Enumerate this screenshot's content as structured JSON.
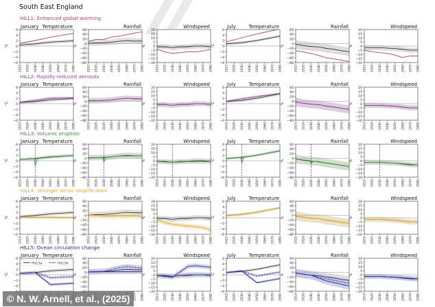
{
  "region_title": "South East England",
  "credit": "© N. W. Arnell, et al., (2025)",
  "colors": {
    "baseline": "#222222",
    "band_baseline": "#d9d9d9",
    "zero_line": "#aaaaaa"
  },
  "chart_data": {
    "type": "line",
    "x_ticks": [
      "2010",
      "2020",
      "2030",
      "2040",
      "2050",
      "2060",
      "2070",
      "2080"
    ],
    "xlim": [
      2010,
      2080
    ],
    "panel_titles": {
      "jan_temp": [
        "January",
        "Temperature"
      ],
      "jan_rain": [
        "",
        "Rainfall"
      ],
      "jan_wind": [
        "",
        "Windspeed"
      ],
      "jul_temp": [
        "July",
        "Temperature"
      ],
      "jul_rain": [
        "",
        "Rainfall"
      ],
      "jul_wind": [
        "",
        "Windspeed"
      ]
    },
    "axes": {
      "temperature": {
        "ylabel": "°C",
        "ylim": [
          -6,
          6
        ],
        "yticks": [
          "-6",
          "-4",
          "-2",
          "0",
          "2",
          "4",
          "6"
        ]
      },
      "rainfall": {
        "ylabel": "%",
        "ylim": [
          -80,
          60
        ],
        "yticks": [
          "-80",
          "-60",
          "-40",
          "-20",
          "0",
          "20",
          "40",
          "60"
        ]
      },
      "windspeed": {
        "ylabel": "%",
        "ylim": [
          -20,
          20
        ],
        "yticks": [
          "-20",
          "-15",
          "-10",
          "-5",
          "0",
          "5",
          "10",
          "15",
          "20"
        ]
      }
    },
    "baseline_series": {
      "jan_temp": {
        "x": [
          2010,
          2030,
          2050,
          2080
        ],
        "y": [
          0.4,
          0.8,
          1.4,
          1.9
        ],
        "band": 0.6
      },
      "jan_rain": {
        "x": [
          2010,
          2020,
          2030,
          2040,
          2050,
          2060,
          2070,
          2080
        ],
        "y": [
          2,
          3,
          4,
          6,
          10,
          13,
          11,
          11
        ],
        "band": 12
      },
      "jan_wind": {
        "x": [
          2010,
          2020,
          2030,
          2040,
          2050,
          2060,
          2070,
          2080
        ],
        "y": [
          -1,
          -1,
          -2,
          -1,
          -1,
          0,
          0,
          -1
        ],
        "band": 3
      },
      "jul_temp": {
        "x": [
          2010,
          2030,
          2050,
          2080
        ],
        "y": [
          0.8,
          1.2,
          2.0,
          3.6
        ],
        "band": 0.5
      },
      "jul_rain": {
        "x": [
          2010,
          2020,
          2030,
          2040,
          2050,
          2060,
          2070,
          2080
        ],
        "y": [
          -3,
          -8,
          -12,
          -14,
          -20,
          -24,
          -30,
          -34
        ],
        "band": 18
      },
      "jul_wind": {
        "x": [
          2010,
          2020,
          2030,
          2040,
          2050,
          2060,
          2070,
          2080
        ],
        "y": [
          -2,
          -2,
          -2,
          -2.5,
          -3,
          -4,
          -5,
          -5
        ],
        "band": 3
      }
    },
    "scenarios": [
      {
        "id": "HILL1",
        "title": "HILL1: Enhanced global warming",
        "color": "#b5404a",
        "band_color": "#d9d9d9",
        "volcano_year": null,
        "series": {
          "jan_temp": [
            {
              "name": "HILL1",
              "x": [
                2010,
                2030,
                2050,
                2080
              ],
              "y": [
                1.0,
                2.0,
                3.2,
                4.6
              ]
            }
          ],
          "jan_rain": [
            {
              "name": "HILL1",
              "x": [
                2010,
                2020,
                2030,
                2040,
                2050,
                2060,
                2070,
                2080
              ],
              "y": [
                10,
                18,
                18,
                28,
                32,
                38,
                45,
                50
              ]
            }
          ],
          "jan_wind": [
            {
              "name": "HILL1",
              "x": [
                2010,
                2020,
                2030,
                2040,
                2050,
                2060,
                2070,
                2080
              ],
              "y": [
                -4,
                -7,
                -9,
                -8,
                -7,
                -7,
                -6,
                -4
              ]
            }
          ],
          "jul_temp": [
            {
              "name": "HILL1",
              "x": [
                2010,
                2030,
                2050,
                2080
              ],
              "y": [
                1.5,
                3.0,
                4.4,
                6.2
              ]
            }
          ],
          "jul_rain": [
            {
              "name": "HILL1",
              "x": [
                2010,
                2020,
                2030,
                2040,
                2050,
                2060,
                2070,
                2080
              ],
              "y": [
                -30,
                -35,
                -42,
                -50,
                -60,
                -65,
                -70,
                -76
              ]
            }
          ],
          "jul_wind": [
            {
              "name": "HILL1",
              "x": [
                2010,
                2020,
                2030,
                2040,
                2050,
                2060,
                2070,
                2080
              ],
              "y": [
                -5,
                -7,
                -8,
                -9,
                -11,
                -14,
                -12,
                -12
              ]
            }
          ]
        }
      },
      {
        "id": "HILL2",
        "title": "HILL2: Rapidly-reduced aerosols",
        "color": "#8a4a90",
        "band_color": "#dcc6e0",
        "volcano_year": null,
        "series": {
          "jan_temp": [
            {
              "name": "HILL2",
              "x": [
                2010,
                2030,
                2050,
                2080
              ],
              "y": [
                0.5,
                1.2,
                2.0,
                2.1
              ]
            }
          ],
          "jan_rain": [
            {
              "name": "HILL2",
              "x": [
                2010,
                2020,
                2030,
                2040,
                2050,
                2060,
                2070,
                2080
              ],
              "y": [
                2,
                3,
                4,
                6,
                10,
                13,
                11,
                11
              ]
            }
          ],
          "jan_wind": [
            {
              "name": "HILL2",
              "x": [
                2010,
                2020,
                2030,
                2040,
                2050,
                2060,
                2070,
                2080
              ],
              "y": [
                -1,
                -1,
                -2,
                -1,
                -1,
                0,
                0,
                -1
              ]
            }
          ],
          "jul_temp": [
            {
              "name": "HILL2",
              "x": [
                2010,
                2030,
                2050,
                2080
              ],
              "y": [
                0.9,
                1.8,
                2.6,
                3.7
              ]
            }
          ],
          "jul_rain": [
            {
              "name": "HILL2",
              "x": [
                2010,
                2020,
                2030,
                2040,
                2050,
                2060,
                2070,
                2080
              ],
              "y": [
                -3,
                -8,
                -12,
                -14,
                -20,
                -24,
                -30,
                -34
              ]
            }
          ],
          "jul_wind": [
            {
              "name": "HILL2",
              "x": [
                2010,
                2020,
                2030,
                2040,
                2050,
                2060,
                2070,
                2080
              ],
              "y": [
                -2,
                -2,
                -2,
                -2.5,
                -3,
                -4,
                -5,
                -5
              ]
            }
          ]
        }
      },
      {
        "id": "HILL3",
        "title": "HILL3: Volcanic eruption",
        "color": "#3e8a3e",
        "band_color": "#c9dfc6",
        "volcano_year": 2030,
        "series": {
          "jan_temp": [
            {
              "name": "HILL3",
              "x": [
                2010,
                2029,
                2030,
                2033,
                2050,
                2080
              ],
              "y": [
                0.4,
                0.8,
                -1.8,
                0.8,
                1.3,
                1.9
              ]
            }
          ],
          "jan_rain": [
            {
              "name": "HILL3",
              "x": [
                2010,
                2029,
                2030,
                2033,
                2050,
                2080
              ],
              "y": [
                2,
                4,
                -15,
                4,
                10,
                11
              ]
            }
          ],
          "jan_wind": [
            {
              "name": "HILL3",
              "x": [
                2010,
                2030,
                2050,
                2080
              ],
              "y": [
                -1,
                -2,
                -1,
                -1
              ]
            }
          ],
          "jul_temp": [
            {
              "name": "HILL3",
              "x": [
                2010,
                2029,
                2030,
                2033,
                2050,
                2080
              ],
              "y": [
                0.8,
                1.2,
                -0.8,
                1.3,
                2.0,
                3.6
              ]
            }
          ],
          "jul_rain": [
            {
              "name": "HILL3",
              "x": [
                2010,
                2029,
                2030,
                2033,
                2050,
                2080
              ],
              "y": [
                -3,
                -10,
                -22,
                -12,
                -20,
                -34
              ]
            }
          ],
          "jul_wind": [
            {
              "name": "HILL3",
              "x": [
                2010,
                2030,
                2050,
                2080
              ],
              "y": [
                -2,
                -2,
                -3,
                -5
              ]
            }
          ]
        }
      },
      {
        "id": "HILL4",
        "title": "HILL4: Stronger Arctic amplification",
        "color": "#d9a830",
        "band_color": "#f3e1b5",
        "volcano_year": null,
        "series": {
          "jan_temp": [
            {
              "name": "HILL4",
              "x": [
                2010,
                2030,
                2050,
                2080
              ],
              "y": [
                0.3,
                0.2,
                0.2,
                0.1
              ]
            }
          ],
          "jan_rain": [
            {
              "name": "HILL4",
              "x": [
                2010,
                2020,
                2030,
                2040,
                2050,
                2060,
                2070,
                2080
              ],
              "y": [
                2,
                0,
                -3,
                -4,
                -2,
                -2,
                -3,
                -6
              ]
            }
          ],
          "jan_wind": [
            {
              "name": "HILL4",
              "x": [
                2010,
                2020,
                2030,
                2040,
                2050,
                2060,
                2070,
                2080
              ],
              "y": [
                -3,
                -6,
                -8,
                -9,
                -10,
                -11,
                -12,
                -15
              ]
            }
          ],
          "jul_temp": [
            {
              "name": "HILL4",
              "x": [
                2010,
                2030,
                2050,
                2080
              ],
              "y": [
                0.8,
                1.2,
                2.0,
                3.6
              ]
            }
          ],
          "jul_rain": [
            {
              "name": "HILL4",
              "x": [
                2010,
                2020,
                2030,
                2040,
                2050,
                2060,
                2070,
                2080
              ],
              "y": [
                -3,
                -8,
                -12,
                -14,
                -20,
                -24,
                -30,
                -34
              ]
            }
          ],
          "jul_wind": [
            {
              "name": "HILL4",
              "x": [
                2010,
                2020,
                2030,
                2040,
                2050,
                2060,
                2070,
                2080
              ],
              "y": [
                -2,
                -2,
                -2,
                -2.5,
                -3,
                -4,
                -5,
                -5
              ]
            }
          ]
        }
      },
      {
        "id": "HILL5",
        "title": "HILL5: Ocean circulation change",
        "color": "#2a2a8a",
        "band_color": "#c3c5ea",
        "volcano_year": null,
        "legend": [
          {
            "name": "HILL5a",
            "style": "solid"
          },
          {
            "name": "HILL5b",
            "style": "dashed"
          }
        ],
        "series": {
          "jan_temp": [
            {
              "name": "HILL5a",
              "style": "solid",
              "x": [
                2010,
                2030,
                2050,
                2080
              ],
              "y": [
                0.5,
                0.8,
                -3.6,
                -3.1
              ]
            },
            {
              "name": "HILL5b",
              "style": "dashed",
              "x": [
                2010,
                2030,
                2050,
                2080
              ],
              "y": [
                0.5,
                0.8,
                -1.1,
                -0.7
              ]
            }
          ],
          "jan_rain": [
            {
              "name": "HILL5a",
              "style": "solid",
              "x": [
                2010,
                2030,
                2050,
                2080
              ],
              "y": [
                2,
                3,
                3,
                3
              ]
            },
            {
              "name": "HILL5b",
              "style": "dashed",
              "x": [
                2010,
                2030,
                2050,
                2060,
                2080
              ],
              "y": [
                2,
                4,
                20,
                25,
                18
              ]
            }
          ],
          "jan_wind": [
            {
              "name": "HILL5a",
              "style": "solid",
              "x": [
                2010,
                2030,
                2050,
                2060,
                2080
              ],
              "y": [
                -1,
                -3,
                10,
                11,
                9
              ]
            },
            {
              "name": "HILL5b",
              "style": "dashed",
              "x": [
                2010,
                2030,
                2050,
                2080
              ],
              "y": [
                -1,
                -2,
                0,
                0
              ]
            }
          ],
          "jul_temp": [
            {
              "name": "HILL5a",
              "style": "solid",
              "x": [
                2010,
                2030,
                2050,
                2080
              ],
              "y": [
                0.8,
                1.4,
                -2.9,
                -1.4
              ]
            },
            {
              "name": "HILL5b",
              "style": "dashed",
              "x": [
                2010,
                2030,
                2050,
                2080
              ],
              "y": [
                0.8,
                1.4,
                -0.5,
                1.0
              ]
            }
          ],
          "jul_rain": [
            {
              "name": "HILL5a",
              "style": "solid",
              "x": [
                2010,
                2030,
                2050,
                2080
              ],
              "y": [
                -3,
                -12,
                -36,
                -58
              ]
            },
            {
              "name": "HILL5b",
              "style": "dashed",
              "x": [
                2010,
                2030,
                2050,
                2080
              ],
              "y": [
                -3,
                -12,
                -28,
                -46
              ]
            }
          ],
          "jul_wind": [
            {
              "name": "HILL5a",
              "style": "solid",
              "x": [
                2010,
                2030,
                2050,
                2080
              ],
              "y": [
                -2,
                -2,
                -3,
                -5
              ]
            },
            {
              "name": "HILL5b",
              "style": "dashed",
              "x": [
                2010,
                2030,
                2050,
                2080
              ],
              "y": [
                -2,
                -2,
                -3,
                -5
              ]
            }
          ]
        }
      }
    ]
  }
}
